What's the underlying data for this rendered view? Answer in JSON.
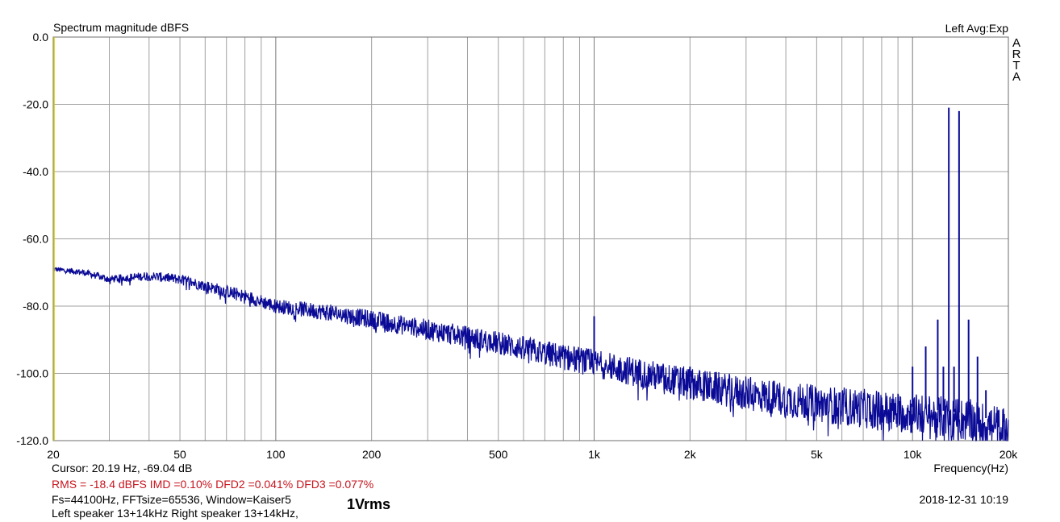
{
  "chart_data": {
    "type": "line",
    "title": "Spectrum magnitude dBFS",
    "header_right": "Left  Avg:Exp",
    "watermark": [
      "A",
      "R",
      "T",
      "A"
    ],
    "xlabel": "Frequency(Hz)",
    "xscale": "log",
    "xlim": [
      20,
      20000
    ],
    "ylim": [
      -120,
      0
    ],
    "xticks": [
      {
        "value": 20,
        "label": "20"
      },
      {
        "value": 50,
        "label": "50"
      },
      {
        "value": 100,
        "label": "100"
      },
      {
        "value": 200,
        "label": "200"
      },
      {
        "value": 500,
        "label": "500"
      },
      {
        "value": 1000,
        "label": "1k"
      },
      {
        "value": 2000,
        "label": "2k"
      },
      {
        "value": 5000,
        "label": "5k"
      },
      {
        "value": 10000,
        "label": "10k"
      },
      {
        "value": 20000,
        "label": "20k"
      }
    ],
    "yticks": [
      {
        "value": 0,
        "label": "0.0"
      },
      {
        "value": -20,
        "label": "-20.0"
      },
      {
        "value": -40,
        "label": "-40.0"
      },
      {
        "value": -60,
        "label": "-60.0"
      },
      {
        "value": -80,
        "label": "-80.0"
      },
      {
        "value": -100,
        "label": "-100.0"
      },
      {
        "value": -120,
        "label": "-120.0"
      }
    ],
    "grid": true,
    "colors": {
      "trace": "#0a0a96",
      "grid": "#a0a0a0",
      "cursor": "#d2c800",
      "background": "#ffffff"
    },
    "series": [
      {
        "noise_floor": [
          [
            20,
            -69
          ],
          [
            25,
            -70
          ],
          [
            30,
            -72
          ],
          [
            40,
            -71
          ],
          [
            50,
            -72
          ],
          [
            60,
            -74
          ],
          [
            80,
            -77
          ],
          [
            100,
            -80
          ],
          [
            150,
            -82
          ],
          [
            200,
            -84
          ],
          [
            300,
            -87
          ],
          [
            500,
            -91
          ],
          [
            700,
            -94
          ],
          [
            1000,
            -97
          ],
          [
            2000,
            -103
          ],
          [
            3000,
            -106
          ],
          [
            5000,
            -109
          ],
          [
            8000,
            -111
          ],
          [
            10000,
            -112
          ],
          [
            15000,
            -114
          ],
          [
            20000,
            -117
          ]
        ],
        "peaks": [
          {
            "x": 1000,
            "y": -83
          },
          {
            "x": 2000,
            "y": -98
          },
          {
            "x": 10000,
            "y": -98
          },
          {
            "x": 11000,
            "y": -92
          },
          {
            "x": 12000,
            "y": -84
          },
          {
            "x": 12500,
            "y": -98
          },
          {
            "x": 13000,
            "y": -21
          },
          {
            "x": 13500,
            "y": -98
          },
          {
            "x": 14000,
            "y": -22
          },
          {
            "x": 15000,
            "y": -84
          },
          {
            "x": 16000,
            "y": -95
          },
          {
            "x": 17000,
            "y": -105
          }
        ]
      }
    ]
  },
  "footer": {
    "cursor": "Cursor: 20.19 Hz, -69.04 dB",
    "metrics": "RMS =  -18.4 dBFS   IMD =0.10%  DFD2 =0.041%  DFD3 =0.077%",
    "fft": "Fs=44100Hz, FFTsize=65536, Window=Kaiser5",
    "description": "Left speaker 13+14kHz Right speaker 13+14kHz,",
    "level": "1Vrms",
    "timestamp": "2018-12-31  10:19"
  }
}
